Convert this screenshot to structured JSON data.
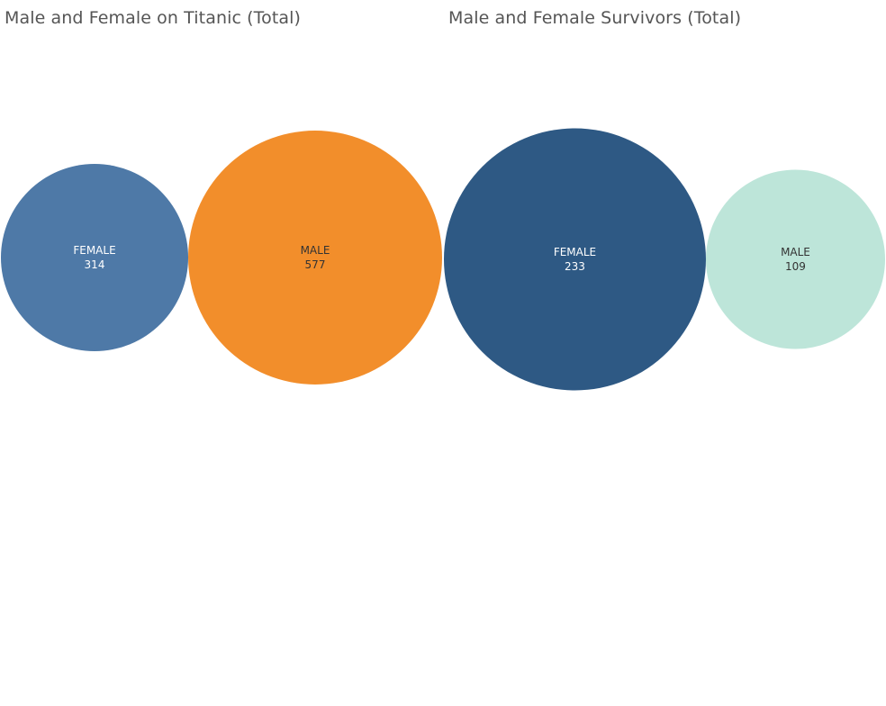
{
  "chart_data": [
    {
      "type": "bubble",
      "title": "Male and Female on Titanic (Total)",
      "categories": [
        "FEMALE",
        "MALE"
      ],
      "values": [
        314,
        577
      ],
      "colors": [
        "#4e79a7",
        "#f28e2b"
      ],
      "label_colors": [
        "#ffffff",
        "#333333"
      ]
    },
    {
      "type": "bubble",
      "title": "Male and Female Survivors (Total)",
      "categories": [
        "FEMALE",
        "MALE"
      ],
      "values": [
        233,
        109
      ],
      "colors": [
        "#2e5984",
        "#bde5d9"
      ],
      "label_colors": [
        "#ffffff",
        "#333333"
      ]
    }
  ]
}
